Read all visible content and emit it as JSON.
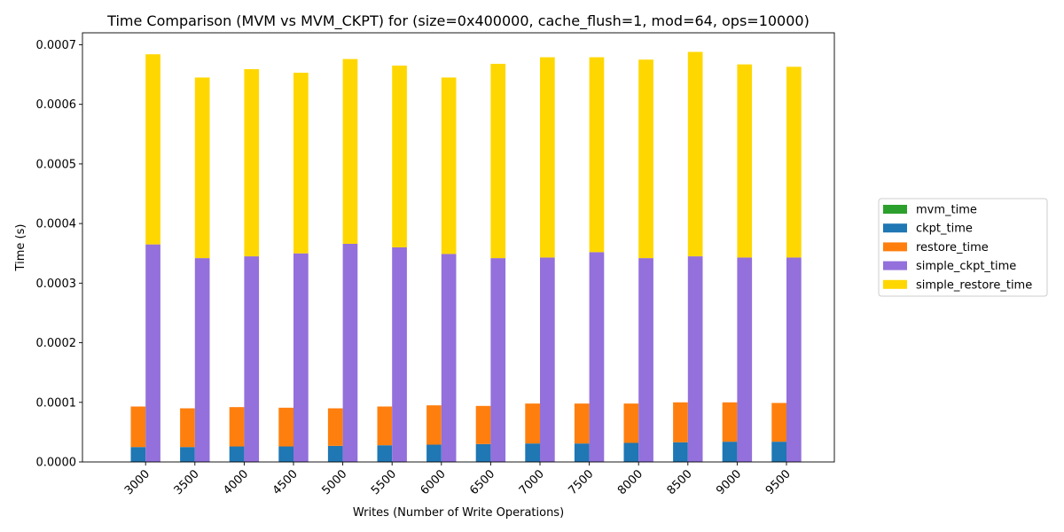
{
  "chart_data": {
    "type": "bar",
    "title": "Time Comparison (MVM vs MVM_CKPT) for (size=0x400000, cache_flush=1, mod=64, ops=10000)",
    "xlabel": "Writes (Number of Write Operations)",
    "ylabel": "Time (s)",
    "ylim": [
      0,
      0.00072
    ],
    "yticks": [
      "0.0000",
      "0.0001",
      "0.0002",
      "0.0003",
      "0.0004",
      "0.0005",
      "0.0006",
      "0.0007"
    ],
    "grid": false,
    "legend_position": "right",
    "stacked": true,
    "categories": [
      "3000",
      "3500",
      "4000",
      "4500",
      "5000",
      "5500",
      "6000",
      "6500",
      "7000",
      "7500",
      "8000",
      "8500",
      "9000",
      "9500"
    ],
    "series": [
      {
        "name": "mvm_time",
        "color": "#2ca02c",
        "group": "left",
        "values": [
          0,
          0,
          0,
          0,
          0,
          0,
          0,
          0,
          0,
          0,
          0,
          0,
          0,
          0
        ]
      },
      {
        "name": "ckpt_time",
        "color": "#1f77b4",
        "group": "left",
        "values": [
          2.5e-05,
          2.5e-05,
          2.6e-05,
          2.6e-05,
          2.7e-05,
          2.8e-05,
          2.9e-05,
          3e-05,
          3.1e-05,
          3.1e-05,
          3.2e-05,
          3.3e-05,
          3.4e-05,
          3.4e-05
        ]
      },
      {
        "name": "restore_time",
        "color": "#ff7f0e",
        "group": "left",
        "values": [
          6.8e-05,
          6.5e-05,
          6.6e-05,
          6.5e-05,
          6.3e-05,
          6.5e-05,
          6.6e-05,
          6.4e-05,
          6.7e-05,
          6.7e-05,
          6.6e-05,
          6.7e-05,
          6.6e-05,
          6.5e-05
        ]
      },
      {
        "name": "simple_ckpt_time",
        "color": "#9370db",
        "group": "right",
        "values": [
          0.000365,
          0.000342,
          0.000345,
          0.00035,
          0.000366,
          0.00036,
          0.000349,
          0.000342,
          0.000343,
          0.000352,
          0.000342,
          0.000345,
          0.000343,
          0.000343
        ]
      },
      {
        "name": "simple_restore_time",
        "color": "#ffd700",
        "group": "right",
        "values": [
          0.000319,
          0.000303,
          0.000314,
          0.000303,
          0.00031,
          0.000305,
          0.000296,
          0.000326,
          0.000336,
          0.000327,
          0.000333,
          0.000343,
          0.000324,
          0.00032
        ]
      }
    ]
  }
}
